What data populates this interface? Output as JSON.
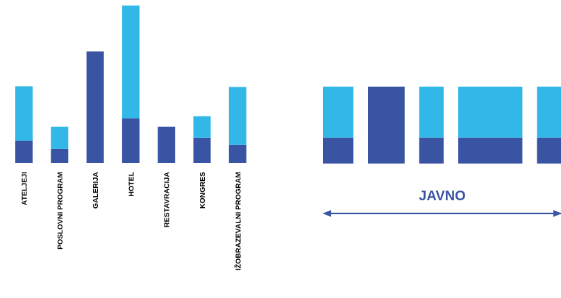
{
  "colors": {
    "dark": "#3a54a4",
    "light": "#31b8e8",
    "arrow": "#3a54a4",
    "label": "#000000"
  },
  "chart_data": [
    {
      "type": "bar",
      "stacked": true,
      "categories": [
        "ATELJEJI",
        "POSLOVNI PROGRAM",
        "GALERIJA",
        "HOTEL",
        "RESTAVRACIJA",
        "KONGRES",
        "IŽOBRAZEVALNI PROGRAM"
      ],
      "series": [
        {
          "color": "dark",
          "values": [
            32,
            20,
            160,
            64,
            52,
            36,
            26
          ]
        },
        {
          "color": "light",
          "values": [
            78,
            32,
            0,
            162,
            0,
            31,
            83
          ]
        }
      ],
      "ylim": [
        0,
        226
      ],
      "grid": false,
      "legend": "none"
    },
    {
      "type": "bar",
      "stacked": true,
      "categories": [
        "",
        "",
        "",
        "",
        ""
      ],
      "widths": [
        1,
        1.2,
        0.8,
        2.1,
        1
      ],
      "series": [
        {
          "color": "dark",
          "values": [
            37,
            110,
            37,
            37,
            37
          ]
        },
        {
          "color": "light",
          "values": [
            73,
            0,
            73,
            73,
            73
          ]
        }
      ],
      "ylim": [
        0,
        110
      ],
      "grid": false,
      "legend": "none"
    }
  ],
  "annotation": {
    "label": "JAVNO",
    "arrow": "double-headed"
  }
}
